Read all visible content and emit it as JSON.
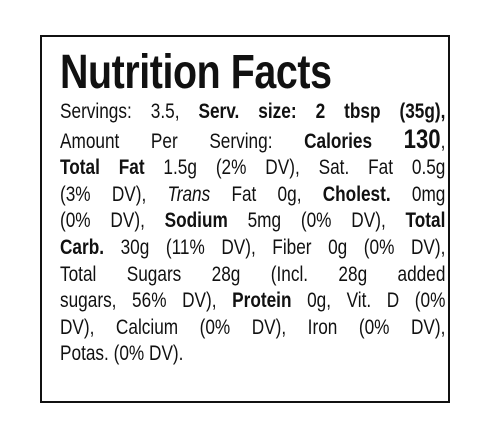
{
  "title": "Nutrition Facts",
  "lines": [
    [
      "Servings: 3.5,",
      "Serv. size: 2 tbsp (35g),"
    ],
    [
      "Amount Per Serving:",
      "Calories",
      "130",
      ","
    ],
    [
      "Total Fat",
      "1.5g (2% DV), Sat. Fat 0.5g"
    ],
    [
      "(3% DV),",
      "Trans",
      "Fat 0g,",
      "Cholest.",
      "0mg"
    ],
    [
      "(0% DV),",
      "Sodium",
      "5mg (0% DV),",
      "Total"
    ],
    [
      "Carb.",
      "30g (11% DV), Fiber 0g (0% DV),"
    ],
    [
      "Total Sugars 28g (Incl. 28g added"
    ],
    [
      "sugars, 56% DV),",
      "Protein",
      "0g, Vit. D (0%"
    ],
    [
      "DV), Calcium (0% DV), Iron (0% DV),"
    ],
    [
      "Potas. (0% DV)."
    ]
  ]
}
